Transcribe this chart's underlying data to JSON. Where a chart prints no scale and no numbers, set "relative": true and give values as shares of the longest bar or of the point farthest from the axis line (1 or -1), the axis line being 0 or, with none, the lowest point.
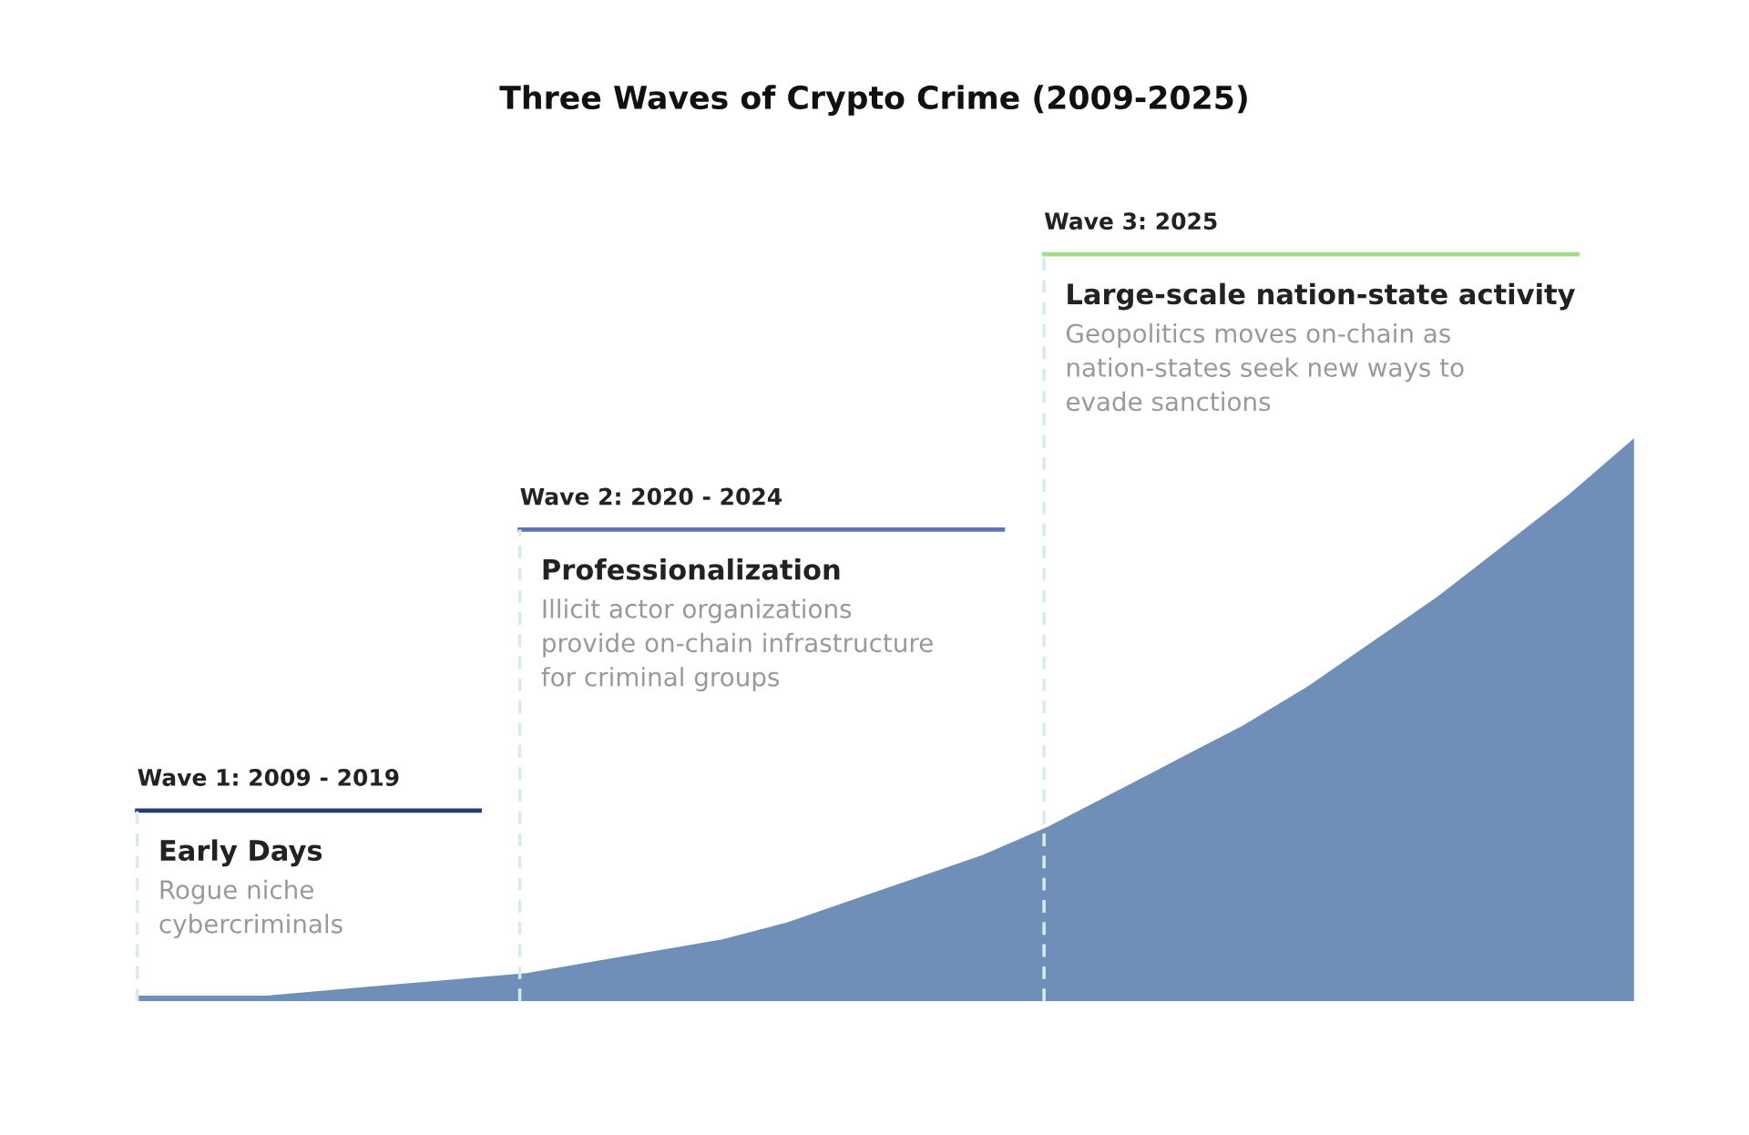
{
  "chart_data": {
    "type": "area",
    "title": "Three Waves of Crypto Crime (2009-2025)",
    "relative": true,
    "categories": [
      null,
      null,
      null,
      null,
      null,
      null,
      null,
      null,
      null,
      null,
      null,
      null,
      null,
      null,
      null,
      null,
      null,
      null,
      null,
      null,
      null,
      null,
      null,
      null
    ],
    "series": [
      {
        "color": "#6f8fb8",
        "values": [
          0.01,
          0.01,
          0.01,
          0.02,
          0.03,
          0.04,
          0.05,
          0.07,
          0.09,
          0.11,
          0.14,
          0.18,
          0.22,
          0.26,
          0.31,
          0.37,
          0.43,
          0.49,
          0.56,
          0.64,
          0.72,
          0.81,
          0.9,
          1.0
        ]
      }
    ],
    "annotations": [
      "Wave 1: 2009 - 2019",
      "Early Days",
      "Rogue niche\ncybercriminals",
      "Wave 2: 2020 - 2024",
      "Professionalization",
      "Illicit actor organizations\nprovide on-chain infrastructure\nfor criminal groups",
      "Wave 3: 2025",
      "Large-scale nation-state activity",
      "Geopolitics moves on-chain as\nnation-states seek new ways to\nevade sanctions"
    ],
    "grid": false,
    "legend": false
  }
}
